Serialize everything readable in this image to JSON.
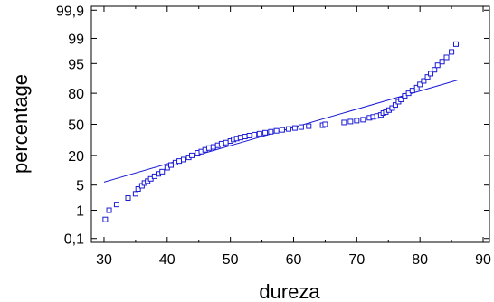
{
  "chart_data": {
    "type": "scatter",
    "title": "",
    "xlabel": "dureza",
    "ylabel": "percentage",
    "xlim": [
      28,
      91
    ],
    "x_ticks": [
      30,
      40,
      50,
      60,
      70,
      80,
      90
    ],
    "y_scale": "normal-probability",
    "y_ticks": [
      {
        "label": "0,1",
        "value": 0.1
      },
      {
        "label": "1",
        "value": 1
      },
      {
        "label": "5",
        "value": 5
      },
      {
        "label": "20",
        "value": 20
      },
      {
        "label": "50",
        "value": 50
      },
      {
        "label": "80",
        "value": 80
      },
      {
        "label": "95",
        "value": 95
      },
      {
        "label": "99",
        "value": 99
      },
      {
        "label": "99,9",
        "value": 99.9
      }
    ],
    "ylim": [
      0.07,
      99.93
    ],
    "grid": false,
    "series": [
      {
        "x": [
          30.2,
          30.8,
          32.0,
          33.8,
          35.0,
          35.4,
          36.0,
          36.4,
          36.9,
          37.4,
          38.0,
          38.6,
          39.2,
          40.0,
          40.6,
          41.3,
          41.9,
          42.6,
          43.4,
          43.9,
          44.8,
          45.4,
          46.0,
          46.6,
          47.3,
          48.0,
          48.6,
          49.3,
          50.0,
          50.5,
          51.0,
          51.6,
          52.3,
          53.0,
          53.8,
          54.6,
          55.5,
          56.4,
          57.3,
          58.2,
          59.2,
          60.2,
          61.2,
          62.4,
          64.6,
          65.0,
          68.0,
          69.0,
          70.0,
          71.0,
          72.0,
          72.6,
          73.2,
          73.8,
          74.2,
          74.6,
          75.1,
          75.6,
          76.1,
          76.6,
          77.0,
          77.6,
          78.2,
          78.8,
          79.5,
          80.0,
          80.6,
          81.2,
          81.7,
          82.3,
          82.8,
          83.5,
          84.2,
          85.0,
          85.7
        ],
        "y": [
          0.5,
          1.0,
          1.5,
          2.3,
          3.0,
          4.0,
          4.8,
          5.6,
          6.2,
          7.0,
          8.0,
          9.0,
          10.0,
          12.0,
          13.5,
          15.0,
          16.0,
          17.0,
          18.5,
          20.0,
          22.0,
          23.0,
          24.5,
          26.0,
          27.0,
          28.5,
          30.0,
          31.0,
          32.5,
          34.0,
          35.0,
          36.0,
          37.0,
          38.0,
          39.0,
          40.0,
          41.0,
          42.0,
          43.0,
          44.0,
          45.0,
          46.0,
          47.0,
          48.0,
          49.0,
          50.0,
          52.0,
          53.0,
          54.0,
          55.0,
          57.0,
          58.0,
          59.0,
          60.0,
          62.0,
          63.0,
          65.0,
          67.0,
          70.0,
          73.0,
          75.0,
          78.0,
          80.0,
          82.0,
          84.0,
          86.0,
          88.0,
          90.0,
          91.5,
          93.0,
          94.5,
          95.5,
          96.5,
          97.5,
          98.5
        ],
        "color": "#1a1ad4",
        "marker": "square-open"
      }
    ],
    "reference_line": {
      "x": [
        30,
        86
      ],
      "y": [
        5.9,
        88.5
      ],
      "color": "#1a1ad4"
    }
  }
}
